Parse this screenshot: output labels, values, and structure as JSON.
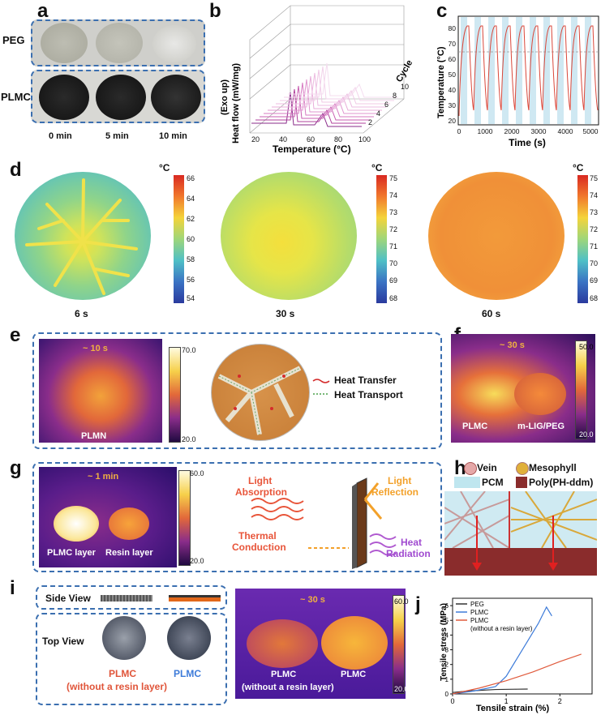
{
  "panels": {
    "a": "a",
    "b": "b",
    "c": "c",
    "d": "d",
    "e": "e",
    "f": "f",
    "g": "g",
    "h": "h",
    "i": "i",
    "j": "j"
  },
  "a": {
    "row1": "PEG",
    "row2": "PLMC",
    "times": [
      "0 min",
      "5 min",
      "10 min"
    ]
  },
  "b": {
    "ylabel_1": "(Exo up)",
    "ylabel_2": "Heat flow (mW/mg)",
    "xlabel": "Temperature (°C)",
    "xticks": [
      "20",
      "40",
      "60",
      "80",
      "100"
    ],
    "zlabel": "Cycle",
    "zticks": [
      "2",
      "4",
      "6",
      "8",
      "10"
    ]
  },
  "c": {
    "ylabel": "Temperature (°C)",
    "xlabel": "Time (s)",
    "yticks": [
      "20",
      "30",
      "40",
      "50",
      "60",
      "70",
      "80"
    ],
    "xticks": [
      "0",
      "1000",
      "2000",
      "3000",
      "4000",
      "5000"
    ]
  },
  "d": {
    "unit": "°C",
    "maps": [
      {
        "time": "6 s",
        "ticks": [
          "66",
          "64",
          "62",
          "60",
          "58",
          "56",
          "54"
        ]
      },
      {
        "time": "30 s",
        "ticks": [
          "75",
          "74",
          "73",
          "72",
          "71",
          "70",
          "69",
          "68"
        ]
      },
      {
        "time": "60 s",
        "ticks": [
          "75",
          "74",
          "73",
          "72",
          "71",
          "70",
          "69",
          "68"
        ]
      }
    ]
  },
  "e": {
    "time": "~ 10 s",
    "label": "PLMN",
    "cb_top": "70.0",
    "cb_bottom": "20.0",
    "legend_1": "Heat Transfer",
    "legend_2": "Heat Transport"
  },
  "f": {
    "time": "~ 30 s",
    "label_1": "PLMC",
    "label_2": "m-LIG/PEG",
    "cb_top": "50.0",
    "cb_bottom": "20.0"
  },
  "g": {
    "time": "~ 1 min",
    "label_1": "PLMC layer",
    "label_2": "Resin layer",
    "cb_top": "60.0",
    "cb_bottom": "20.0",
    "txt_light_1": "Light",
    "txt_light_2": "Absorption",
    "txt_refl_1": "Light",
    "txt_refl_2": "Reflection",
    "txt_th_1": "Thermal",
    "txt_th_2": "Conduction",
    "txt_heat_1": "Heat",
    "txt_heat_2": "Radiation"
  },
  "h": {
    "vein": "Vein",
    "meso": "Mesophyll",
    "pcm": "PCM",
    "poly": "Poly(PH-ddm)"
  },
  "i": {
    "side": "Side View",
    "top": "Top View",
    "lab1a": "PLMC",
    "lab1b": "(without a resin layer)",
    "lab2": "PLMC",
    "time": "~ 30 s",
    "th1a": "PLMC",
    "th1b": "(without a resin layer)",
    "th2": "PLMC",
    "cb_top": "60.0",
    "cb_bottom": "20.0"
  },
  "chart_data": {
    "type": "line",
    "xlabel": "Tensile strain (%)",
    "ylabel": "Tensile stress (MPa)",
    "xlim": [
      0,
      2.6
    ],
    "ylim": [
      0,
      6.5
    ],
    "xticks": [
      "0",
      "1",
      "2"
    ],
    "yticks": [
      "0",
      "1",
      "2",
      "3",
      "4",
      "5",
      "6"
    ],
    "series": [
      {
        "name": "PEG",
        "color": "#333333",
        "x": [
          0,
          0.3,
          0.8,
          1.2,
          1.4
        ],
        "y": [
          0.1,
          0.2,
          0.3,
          0.32,
          0.33
        ]
      },
      {
        "name": "PLMC",
        "color": "#3d7bd9",
        "x": [
          0,
          0.4,
          0.8,
          1.0,
          1.2,
          1.4,
          1.6,
          1.75,
          1.85
        ],
        "y": [
          0,
          0.2,
          0.5,
          1.2,
          2.4,
          3.6,
          4.8,
          5.9,
          5.3
        ]
      },
      {
        "name": "PLMC",
        "color": "#e05a3c",
        "x": [
          0,
          0.5,
          1.0,
          1.5,
          2.0,
          2.4
        ],
        "y": [
          0,
          0.4,
          0.9,
          1.5,
          2.2,
          2.7
        ]
      }
    ],
    "legend_note": "(without a resin layer)"
  }
}
